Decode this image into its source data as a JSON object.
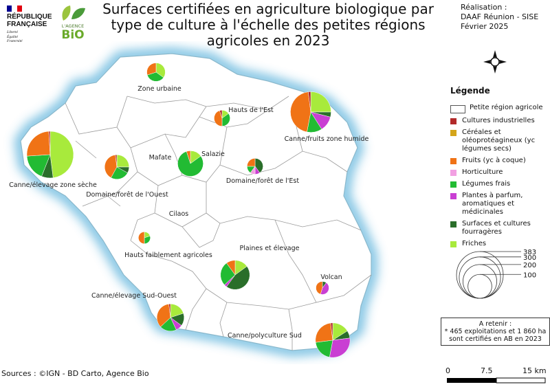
{
  "title": "Surfaces certifiées en agriculture biologique par type de culture à l'échelle des petites régions agricoles en 2023",
  "credit": {
    "line1": "Réalisation :",
    "line2": "DAAF Réunion - SISE",
    "line3": "Février 2025"
  },
  "republique": {
    "line1": "RÉPUBLIQUE",
    "line2": "FRANÇAISE",
    "motto1": "Liberté",
    "motto2": "Égalité",
    "motto3": "Fraternité"
  },
  "agence_bio": {
    "line1": "L'AGENCE",
    "line2": "BiO"
  },
  "legend": {
    "title": "Légende",
    "region_label": "Petite région agricole",
    "categories": [
      {
        "key": "industrielles",
        "label": "Cultures industrielles",
        "color": "#b22a2a"
      },
      {
        "key": "cereales",
        "label": "Céréales et oléoprotéagineux (yc légumes secs)",
        "color": "#d4a51a"
      },
      {
        "key": "fruits",
        "label": "Fruits (yc à coque)",
        "color": "#f07316"
      },
      {
        "key": "horticulture",
        "label": "Horticulture",
        "color": "#f2a0e2"
      },
      {
        "key": "legumes",
        "label": "Légumes frais",
        "color": "#22bb33"
      },
      {
        "key": "plantes",
        "label": "Plantes à parfum, aromatiques et médicinales",
        "color": "#c93fd3"
      },
      {
        "key": "fourrageres",
        "label": "Surfaces et cultures fourragères",
        "color": "#2a6e2a"
      },
      {
        "key": "friches",
        "label": "Friches",
        "color": "#a8ea3c"
      }
    ],
    "size_values": [
      "383",
      "300",
      "200",
      "100"
    ]
  },
  "note": {
    "title": "A retenir :",
    "text": "* 465 exploitations et 1 860 ha sont certifiés en AB en 2023"
  },
  "sources": "Sources : ©IGN - BD Carto, Agence Bio",
  "scale": {
    "labels": [
      "0",
      "7.5",
      "15 km"
    ]
  },
  "map": {
    "label_only_regions": [
      "Mafate",
      "Cilaos"
    ],
    "regions": [
      {
        "name": "Zone urbaine",
        "value": 60,
        "shares": {
          "fruits": 0.3,
          "legumes": 0.35,
          "friches": 0.35
        }
      },
      {
        "name": "Hauts de l'Est",
        "value": 45,
        "shares": {
          "industrielles": 0.05,
          "fruits": 0.45,
          "legumes": 0.35,
          "friches": 0.15
        }
      },
      {
        "name": "Canne/fruits zone humide",
        "value": 290,
        "shares": {
          "industrielles": 0.02,
          "fruits": 0.45,
          "legumes": 0.12,
          "plantes": 0.12,
          "fourrageres": 0.04,
          "friches": 0.25
        }
      },
      {
        "name": "Canne/élevage zone sèche",
        "value": 383,
        "shares": {
          "industrielles": 0.01,
          "fruits": 0.25,
          "legumes": 0.18,
          "fourrageres": 0.08,
          "friches": 0.48
        }
      },
      {
        "name": "Domaine/forêt de l'Ouest",
        "value": 105,
        "shares": {
          "industrielles": 0.02,
          "fruits": 0.4,
          "legumes": 0.25,
          "fourrageres": 0.08,
          "friches": 0.25
        }
      },
      {
        "name": "Salazie",
        "value": 115,
        "shares": {
          "fruits": 0.05,
          "legumes": 0.8,
          "friches": 0.15
        }
      },
      {
        "name": "Domaine/forêt de l'Est",
        "value": 45,
        "shares": {
          "fruits": 0.25,
          "horticulture": 0.1,
          "legumes": 0.15,
          "plantes": 0.1,
          "fourrageres": 0.4
        }
      },
      {
        "name": "Hauts faiblement agricoles",
        "value": 25,
        "shares": {
          "fruits": 0.5,
          "legumes": 0.3,
          "friches": 0.2
        }
      },
      {
        "name": "Plaines et élevage",
        "value": 150,
        "shares": {
          "friches": 0.15,
          "fourrageres": 0.45,
          "plantes": 0.03,
          "legumes": 0.27,
          "fruits": 0.1
        }
      },
      {
        "name": "Volcan",
        "value": 30,
        "shares": {
          "fruits": 0.45,
          "plantes": 0.45,
          "fourrageres": 0.1
        }
      },
      {
        "name": "Canne/élevage Sud-Ouest",
        "value": 130,
        "shares": {
          "industrielles": 0.02,
          "fruits": 0.35,
          "legumes": 0.2,
          "plantes": 0.08,
          "fourrageres": 0.15,
          "friches": 0.2
        }
      },
      {
        "name": "Canne/polyculture Sud",
        "value": 210,
        "shares": {
          "industrielles": 0.02,
          "fruits": 0.25,
          "legumes": 0.2,
          "plantes": 0.3,
          "fourrageres": 0.07,
          "friches": 0.16
        }
      }
    ]
  }
}
